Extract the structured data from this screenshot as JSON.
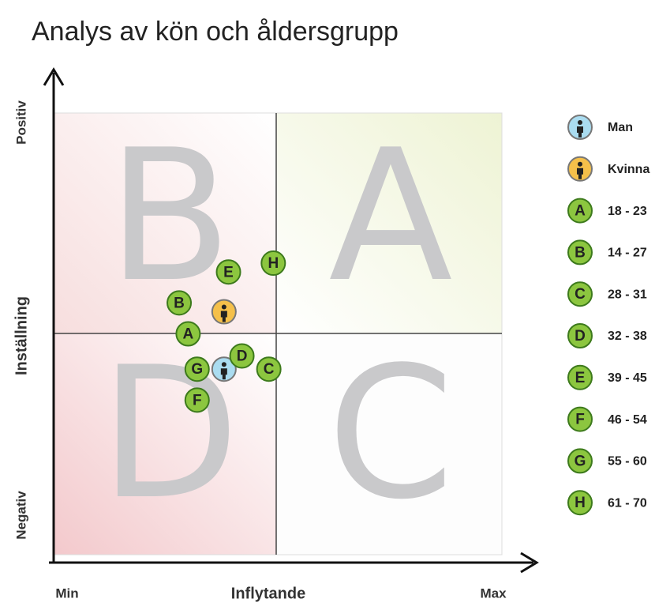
{
  "chart_data": {
    "type": "scatter",
    "title": "Analys av kön och åldersgrupp",
    "x_label": "Inflytande",
    "y_label": "Inställning",
    "x_min_label": "Min",
    "x_max_label": "Max",
    "y_max_label": "Positiv",
    "y_min_label": "Negativ",
    "quadrant_labels": [
      "B",
      "A",
      "D",
      "C"
    ],
    "xlim": [
      0,
      100
    ],
    "ylim": [
      0,
      100
    ],
    "series": [
      {
        "name": "Man",
        "color": "#aadcf0",
        "x": [
          38
        ],
        "y": [
          42
        ]
      },
      {
        "name": "Kvinna",
        "color": "#f5c04a",
        "x": [
          38
        ],
        "y": [
          55
        ]
      },
      {
        "name": "18 - 23",
        "marker": "A",
        "color": "#8cc63f",
        "x": [
          30
        ],
        "y": [
          50
        ]
      },
      {
        "name": "14 - 27",
        "marker": "B",
        "color": "#8cc63f",
        "x": [
          28
        ],
        "y": [
          57
        ]
      },
      {
        "name": "28 - 31",
        "marker": "C",
        "color": "#8cc63f",
        "x": [
          48
        ],
        "y": [
          42
        ]
      },
      {
        "name": "32 - 38",
        "marker": "D",
        "color": "#8cc63f",
        "x": [
          42
        ],
        "y": [
          45
        ]
      },
      {
        "name": "39 - 45",
        "marker": "E",
        "color": "#8cc63f",
        "x": [
          39
        ],
        "y": [
          64
        ]
      },
      {
        "name": "46 - 54",
        "marker": "F",
        "color": "#8cc63f",
        "x": [
          32
        ],
        "y": [
          35
        ]
      },
      {
        "name": "55 - 60",
        "marker": "G",
        "color": "#8cc63f",
        "x": [
          32
        ],
        "y": [
          42
        ]
      },
      {
        "name": "61 - 70",
        "marker": "H",
        "color": "#8cc63f",
        "x": [
          49
        ],
        "y": [
          66
        ]
      }
    ]
  }
}
